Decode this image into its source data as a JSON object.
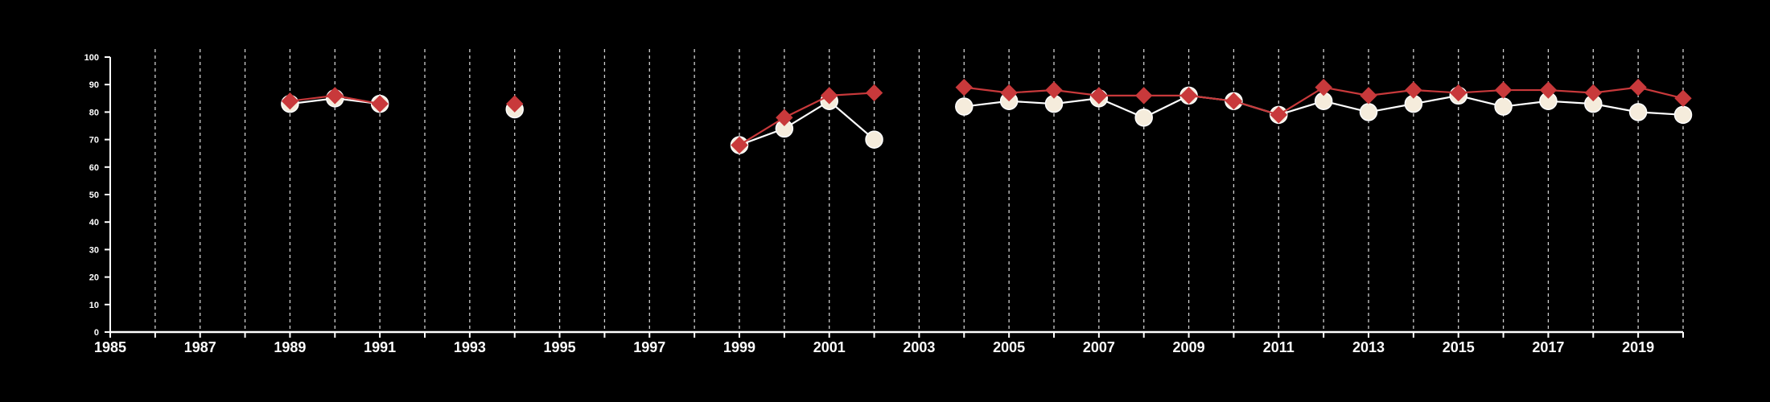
{
  "chart_data": {
    "type": "line",
    "title": "",
    "xlabel": "",
    "ylabel": "",
    "xlim": [
      1985,
      2020
    ],
    "ylim": [
      0,
      100
    ],
    "x_ticks_labeled": [
      1985,
      1987,
      1989,
      1991,
      1993,
      1995,
      1997,
      1999,
      2001,
      2003,
      2005,
      2007,
      2009,
      2011,
      2013,
      2015,
      2017,
      2019
    ],
    "y_ticks": [
      0,
      10,
      20,
      30,
      40,
      50,
      60,
      70,
      80,
      90,
      100
    ],
    "vertical_gridlines": "dashed, every year",
    "background": "#000000",
    "axis_color": "#ffffff",
    "series": [
      {
        "color": "#ffffff",
        "marker": "circle",
        "marker_fill": "#f5ecdc",
        "segments": [
          [
            {
              "x": 1989,
              "y": 83
            },
            {
              "x": 1990,
              "y": 85
            },
            {
              "x": 1991,
              "y": 83
            }
          ],
          [
            {
              "x": 1994,
              "y": 81
            }
          ],
          [
            {
              "x": 1999,
              "y": 68
            },
            {
              "x": 2000,
              "y": 74
            },
            {
              "x": 2001,
              "y": 84
            },
            {
              "x": 2002,
              "y": 70
            }
          ],
          [
            {
              "x": 2004,
              "y": 82
            },
            {
              "x": 2005,
              "y": 84
            },
            {
              "x": 2006,
              "y": 83
            },
            {
              "x": 2007,
              "y": 85
            },
            {
              "x": 2008,
              "y": 78
            },
            {
              "x": 2009,
              "y": 86
            },
            {
              "x": 2010,
              "y": 84
            },
            {
              "x": 2011,
              "y": 79
            },
            {
              "x": 2012,
              "y": 84
            },
            {
              "x": 2013,
              "y": 80
            },
            {
              "x": 2014,
              "y": 83
            },
            {
              "x": 2015,
              "y": 86
            },
            {
              "x": 2016,
              "y": 82
            },
            {
              "x": 2017,
              "y": 84
            },
            {
              "x": 2018,
              "y": 83
            },
            {
              "x": 2019,
              "y": 80
            },
            {
              "x": 2020,
              "y": 79
            }
          ]
        ]
      },
      {
        "color": "#c8393b",
        "marker": "diamond",
        "marker_fill": "#c8393b",
        "segments": [
          [
            {
              "x": 1989,
              "y": 84
            },
            {
              "x": 1990,
              "y": 86
            },
            {
              "x": 1991,
              "y": 83
            }
          ],
          [
            {
              "x": 1994,
              "y": 83
            }
          ],
          [
            {
              "x": 1999,
              "y": 68
            },
            {
              "x": 2000,
              "y": 78
            },
            {
              "x": 2001,
              "y": 86
            },
            {
              "x": 2002,
              "y": 87
            }
          ],
          [
            {
              "x": 2004,
              "y": 89
            },
            {
              "x": 2005,
              "y": 87
            },
            {
              "x": 2006,
              "y": 88
            },
            {
              "x": 2007,
              "y": 86
            },
            {
              "x": 2008,
              "y": 86
            },
            {
              "x": 2009,
              "y": 86
            },
            {
              "x": 2010,
              "y": 84
            },
            {
              "x": 2011,
              "y": 79
            },
            {
              "x": 2012,
              "y": 89
            },
            {
              "x": 2013,
              "y": 86
            },
            {
              "x": 2014,
              "y": 88
            },
            {
              "x": 2015,
              "y": 87
            },
            {
              "x": 2016,
              "y": 88
            },
            {
              "x": 2017,
              "y": 88
            },
            {
              "x": 2018,
              "y": 87
            },
            {
              "x": 2019,
              "y": 89
            },
            {
              "x": 2020,
              "y": 85
            }
          ]
        ]
      }
    ]
  }
}
